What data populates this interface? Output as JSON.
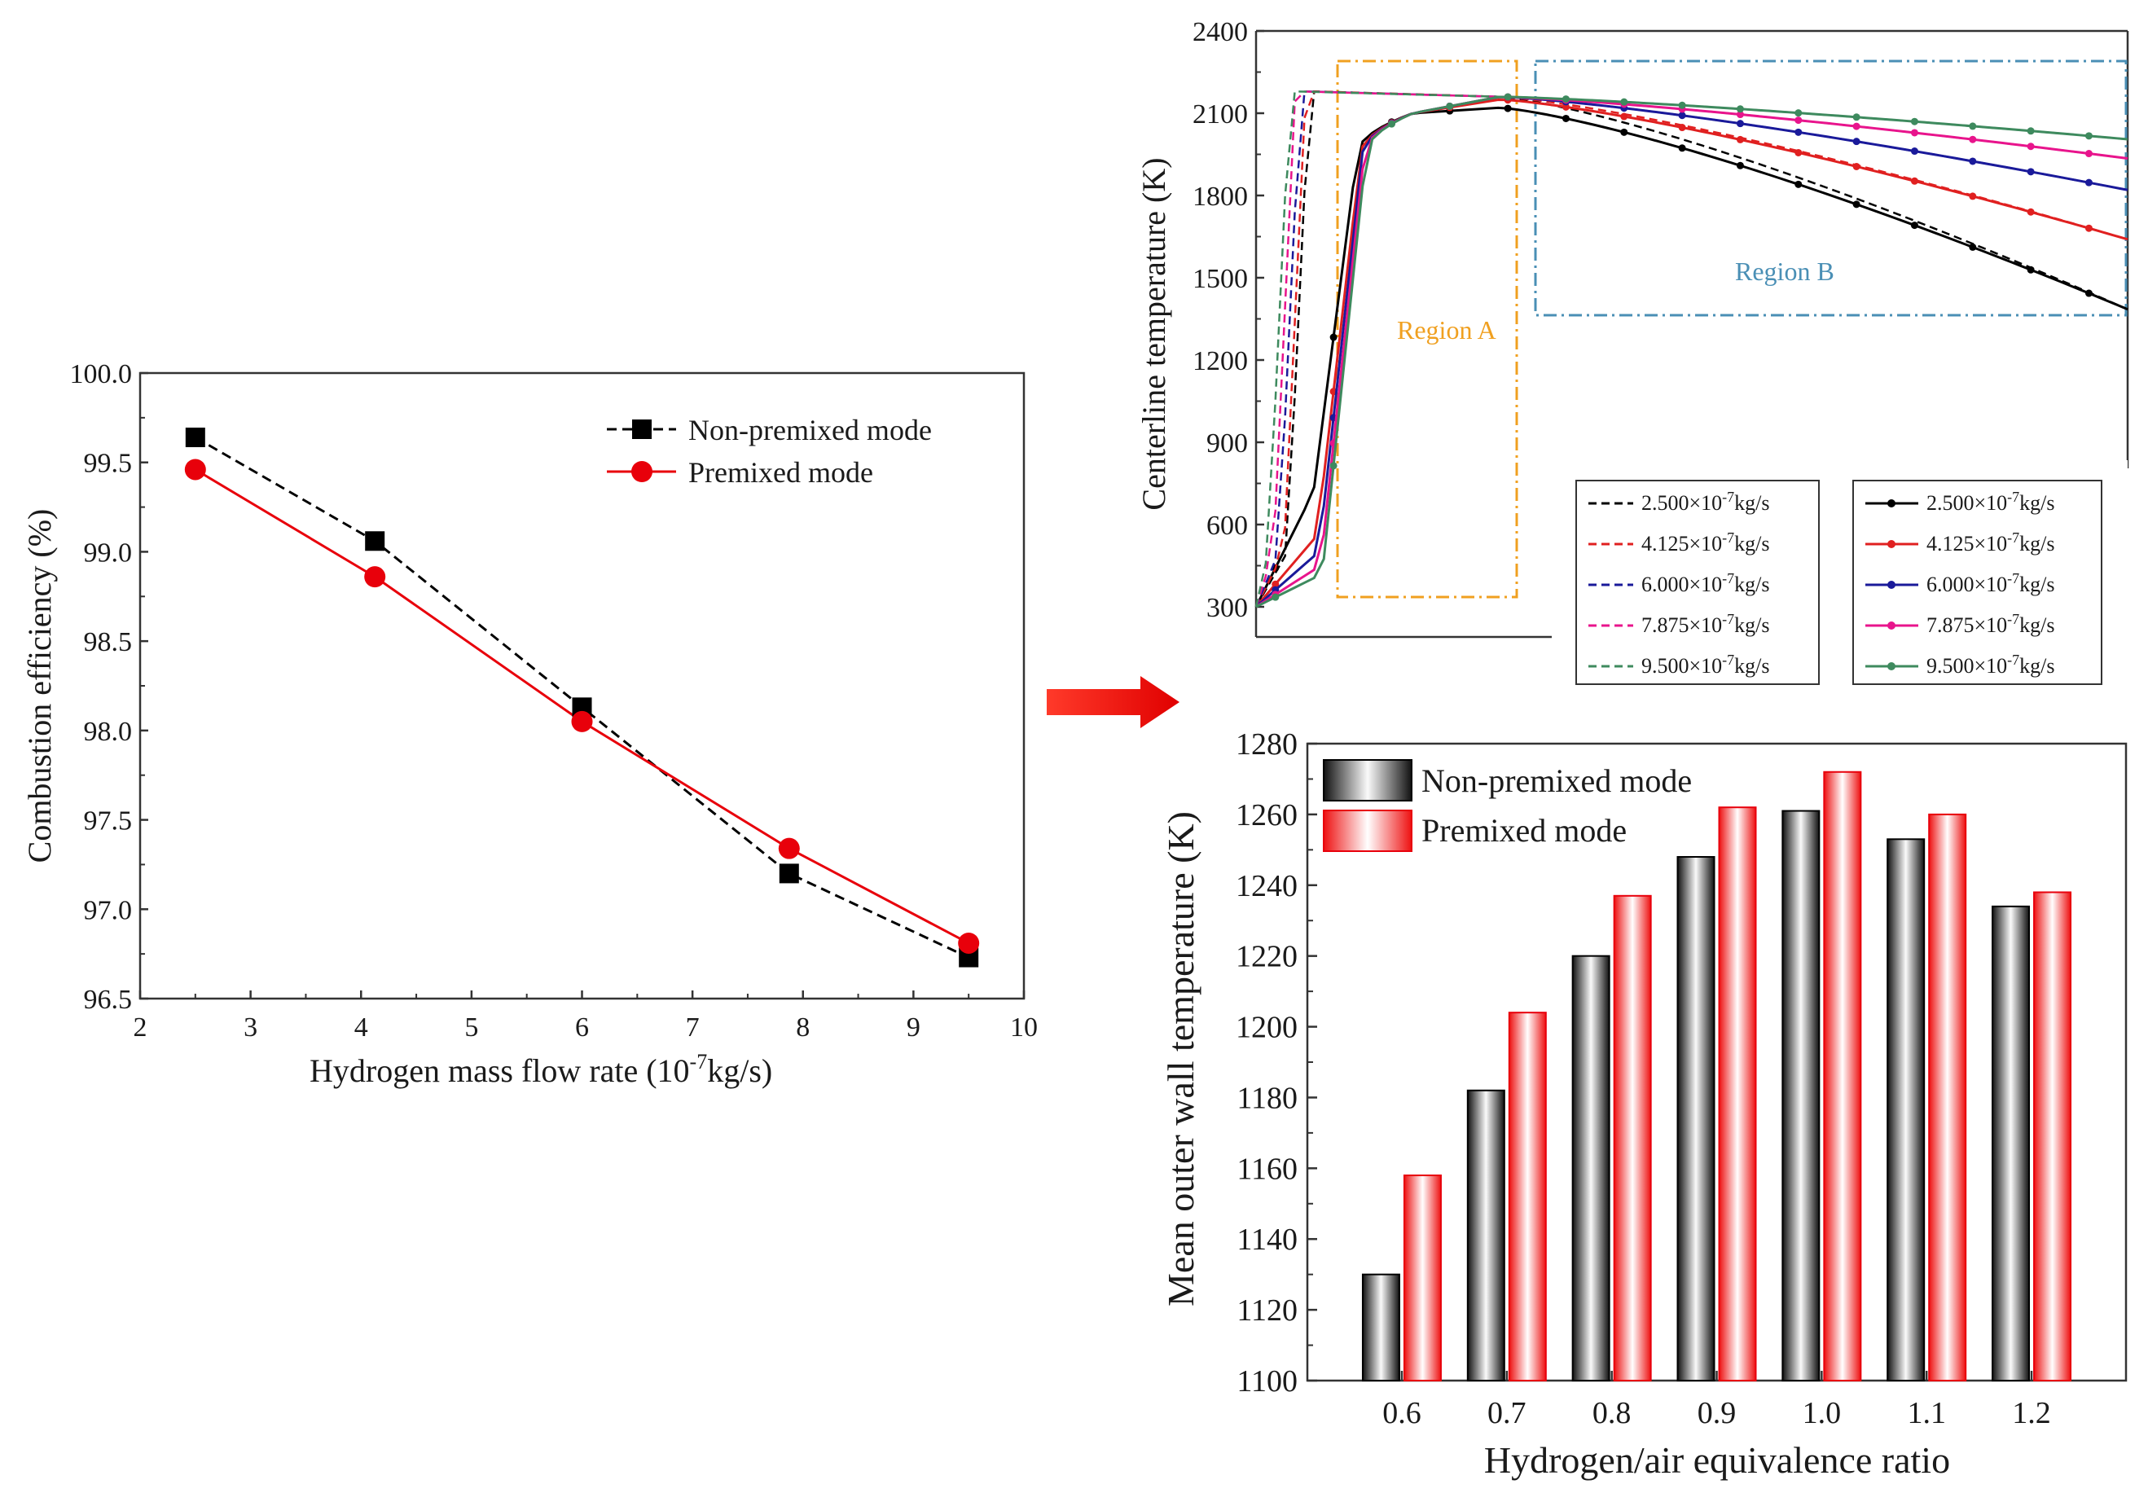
{
  "chart_data": [
    {
      "id": "efficiency",
      "type": "line",
      "title": "",
      "xlabel": "Hydrogen mass flow rate (10⁻⁷kg/s)",
      "ylabel": "Combustion efficiency (%)",
      "xlim": [
        2,
        10
      ],
      "ylim": [
        96.5,
        100.0
      ],
      "xticks": [
        "2",
        "3",
        "4",
        "5",
        "6",
        "7",
        "8",
        "9",
        "10"
      ],
      "yticks": [
        "96.5",
        "97.0",
        "97.5",
        "98.0",
        "98.5",
        "99.0",
        "99.5",
        "100.0"
      ],
      "legend_position": "top-right",
      "series": [
        {
          "name": "Non-premixed mode",
          "color": "#000000",
          "marker": "square",
          "line": "dashed",
          "x": [
            2.5,
            4.125,
            6.0,
            7.875,
            9.5
          ],
          "y": [
            99.64,
            99.06,
            98.13,
            97.2,
            96.73
          ]
        },
        {
          "name": "Premixed mode",
          "color": "#e8000b",
          "marker": "circle",
          "line": "solid",
          "x": [
            2.5,
            4.125,
            6.0,
            7.875,
            9.5
          ],
          "y": [
            99.46,
            98.86,
            98.05,
            97.34,
            96.81
          ]
        }
      ]
    },
    {
      "id": "centerline",
      "type": "line",
      "title": "",
      "xlabel": "",
      "ylabel": "Centerline temperature (K)",
      "ylim": [
        300,
        2400
      ],
      "yticks": [
        "300",
        "600",
        "900",
        "1200",
        "1500",
        "1800",
        "2100",
        "2400"
      ],
      "annotations": [
        {
          "label": "Region A",
          "color": "#f0a020"
        },
        {
          "label": "Region B",
          "color": "#4a8fb5"
        }
      ],
      "legend_dashed_title": "",
      "legend_solid_title": "",
      "series": [
        {
          "name": "2.500×10⁻⁷kg/s",
          "color": "#000000"
        },
        {
          "name": "4.125×10⁻⁷kg/s",
          "color": "#e02020"
        },
        {
          "name": "6.000×10⁻⁷kg/s",
          "color": "#1a1a9a"
        },
        {
          "name": "7.875×10⁻⁷kg/s",
          "color": "#e8148c"
        },
        {
          "name": "9.500×10⁻⁷kg/s",
          "color": "#3e8a5e"
        }
      ],
      "legend_names": [
        {
          "mantissa": "2.500×10",
          "exp": "-7",
          "unit": "kg/s"
        },
        {
          "mantissa": "4.125×10",
          "exp": "-7",
          "unit": "kg/s"
        },
        {
          "mantissa": "6.000×10",
          "exp": "-7",
          "unit": "kg/s"
        },
        {
          "mantissa": "7.875×10",
          "exp": "-7",
          "unit": "kg/s"
        },
        {
          "mantissa": "9.500×10",
          "exp": "-7",
          "unit": "kg/s"
        }
      ]
    },
    {
      "id": "wall",
      "type": "bar",
      "title": "",
      "xlabel": "Hydrogen/air equivalence ratio",
      "ylabel": "Mean outer wall temperature (K)",
      "ylim": [
        1100,
        1280
      ],
      "yticks": [
        "1100",
        "1120",
        "1140",
        "1160",
        "1180",
        "1200",
        "1220",
        "1240",
        "1260",
        "1280"
      ],
      "categories": [
        "0.6",
        "0.7",
        "0.8",
        "0.9",
        "1.0",
        "1.1",
        "1.2"
      ],
      "legend_position": "top-left",
      "series": [
        {
          "name": "Non-premixed mode",
          "color": "#000000",
          "values": [
            1130,
            1182,
            1220,
            1248,
            1261,
            1253,
            1234
          ]
        },
        {
          "name": "Premixed mode",
          "color": "#e8000b",
          "values": [
            1158,
            1204,
            1237,
            1262,
            1272,
            1260,
            1238
          ]
        }
      ]
    }
  ],
  "labels": {
    "eff_xlabel_main": "Hydrogen mass flow rate (10",
    "eff_xlabel_exp": "-7",
    "eff_xlabel_tail": "kg/s)"
  }
}
